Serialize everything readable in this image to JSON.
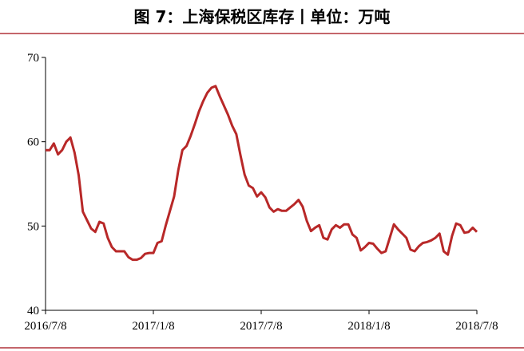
{
  "chart_data": {
    "type": "line",
    "title": "图 7：上海保税区库存丨单位：万吨",
    "categories": [
      "2016/7/8",
      null,
      null,
      null,
      null,
      null,
      null,
      null,
      null,
      null,
      null,
      null,
      null,
      null,
      null,
      null,
      null,
      null,
      null,
      null,
      null,
      null,
      null,
      null,
      null,
      null,
      "2017/1/8",
      null,
      null,
      null,
      null,
      null,
      null,
      null,
      null,
      null,
      null,
      null,
      null,
      null,
      null,
      null,
      null,
      null,
      null,
      null,
      null,
      null,
      null,
      null,
      null,
      null,
      "2017/7/8",
      null,
      null,
      null,
      null,
      null,
      null,
      null,
      null,
      null,
      null,
      null,
      null,
      null,
      null,
      null,
      null,
      null,
      null,
      null,
      null,
      null,
      null,
      null,
      null,
      null,
      "2018/1/8",
      null,
      null,
      null,
      null,
      null,
      null,
      null,
      null,
      null,
      null,
      null,
      null,
      null,
      null,
      null,
      null,
      null,
      null,
      null,
      null,
      null,
      null,
      null,
      null,
      null,
      "2018/7/8"
    ],
    "series": [
      {
        "color": "#b82828",
        "values": [
          59,
          59,
          59.8,
          58.5,
          59,
          60,
          60.5,
          58.7,
          56,
          51.7,
          50.7,
          49.7,
          49.3,
          50.5,
          50.3,
          48.6,
          47.5,
          47,
          47,
          47,
          46.3,
          46,
          46,
          46.2,
          46.7,
          46.8,
          46.8,
          48,
          48.2,
          50.1,
          51.8,
          53.5,
          56.6,
          59,
          59.5,
          60.7,
          62.1,
          63.6,
          64.8,
          65.8,
          66.4,
          66.6,
          65.4,
          64.3,
          63.2,
          61.9,
          60.9,
          58.4,
          56.1,
          54.8,
          54.5,
          53.5,
          54,
          53.4,
          52.2,
          51.7,
          52,
          51.8,
          51.8,
          52.2,
          52.6,
          53.1,
          52.3,
          50.6,
          49.4,
          49.8,
          50.1,
          48.6,
          48.4,
          49.6,
          50.1,
          49.8,
          50.2,
          50.2,
          49,
          48.6,
          47.1,
          47.5,
          48,
          47.9,
          47.3,
          46.8,
          47,
          48.6,
          50.2,
          49.6,
          49.1,
          48.6,
          47.2,
          47,
          47.6,
          48,
          48.1,
          48.3,
          48.6,
          49.1,
          47,
          46.6,
          48.8,
          50.3,
          50.1,
          49.2,
          49.3,
          49.8,
          49.3
        ]
      }
    ],
    "ylim": [
      40,
      70
    ],
    "yticks": [
      40,
      50,
      60,
      70
    ],
    "grid": false
  }
}
